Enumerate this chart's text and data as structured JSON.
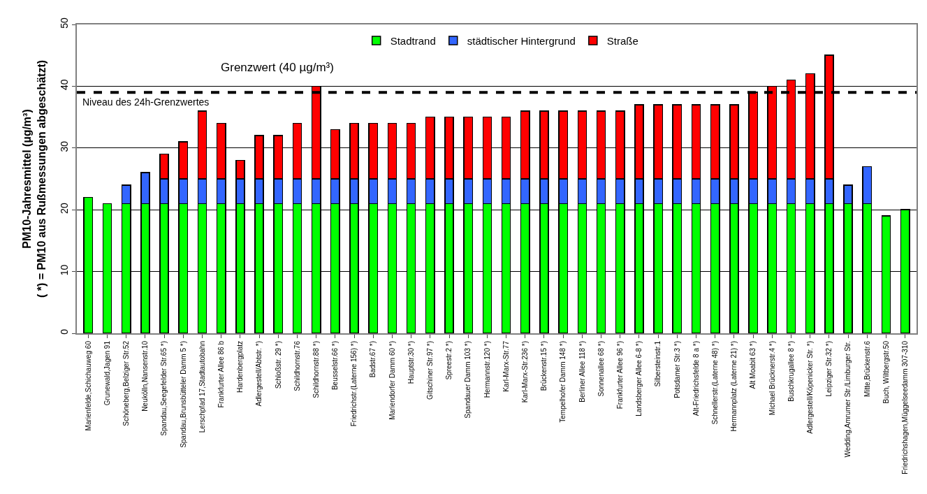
{
  "chart_data": {
    "type": "bar",
    "stacked": true,
    "ylabel": "PM10-Jahresmittel (µg/m³)\n( *) = PM10 aus Rußmessungen abgeschätzt)",
    "categories": [
      "Marienfelde,Schichauweg 60",
      "Grunewald,Jagen 91",
      "Schöneberg,Belziger Str.52",
      "Neukölln,Nansenstr.10",
      "Spandau,Seegefelder Str.65 *)",
      "Spandau,Brunsbütteler Damm 5 *)",
      "Lerschpfad 17,Stadtautobahn",
      "Frankfurter Allee 86 b",
      "Hardenbergplatz",
      "Adlergestell/Abtstr. *)",
      "Schloßstr. 29 *)",
      "Schildhornstr.76",
      "Schildhornstr.88 *)",
      "Beusselstr.66 *)",
      "Friedrichstr.(Laterne 156) *)",
      "Badstr.67 *)",
      "Mariendorfer Damm 60 *)",
      "Hauptstr.30 *)",
      "Gitschiner Str.97 *)",
      "Spreestr.2 *)",
      "Spandauer Damm 103 *)",
      "Hermannstr.120 *)",
      "Karl-Marx-Str.77",
      "Karl-Marx-Str.236 *)",
      "Brückenstr.15 *)",
      "Tempelhofer Damm 148 *)",
      "Berliner Allee 118 *)",
      "Sonnenallee 68 *)",
      "Frankfurter Allee 96 *)",
      "Landsberger Allee 6-8 *)",
      "Silbersteinstr.1",
      "Potsdamer Str.3 *)",
      "Alt-Friedrichsfelde 8 a *)",
      "Schnellerstr.(Laterne 48) *)",
      "Hermannplatz (Laterne 21) *)",
      "Alt Moabit 63 *)",
      "Michael Brücknerstr.4 *)",
      "Buschkrugallee 8 *)",
      "Adlergestell/Köpenicker Str. *)",
      "Leipziger Str.32 *)",
      "Wedding,Amrumer Str./Limburger Str.",
      "Mitte,Brückenstr.6",
      "Buch, Wiltbergstr.50",
      "Friedrichshagen,Müggelseedamm 307-310"
    ],
    "series": [
      {
        "name": "Stadtrand",
        "color": "#00ff00",
        "values": [
          22,
          21,
          21,
          21,
          21,
          21,
          21,
          21,
          21,
          21,
          21,
          21,
          21,
          21,
          21,
          21,
          21,
          21,
          21,
          21,
          21,
          21,
          21,
          21,
          21,
          21,
          21,
          21,
          21,
          21,
          21,
          21,
          21,
          21,
          21,
          21,
          21,
          21,
          21,
          21,
          21,
          21,
          19,
          20
        ]
      },
      {
        "name": "städtischer Hintergrund",
        "color": "#3366ff",
        "values": [
          null,
          null,
          3,
          5,
          4,
          4,
          4,
          4,
          4,
          4,
          4,
          4,
          4,
          4,
          4,
          4,
          4,
          4,
          4,
          4,
          4,
          4,
          4,
          4,
          4,
          4,
          4,
          4,
          4,
          4,
          4,
          4,
          4,
          4,
          4,
          4,
          4,
          4,
          4,
          4,
          3,
          6,
          null,
          null
        ]
      },
      {
        "name": "Straße",
        "color": "#ff0000",
        "values": [
          null,
          null,
          null,
          null,
          4,
          6,
          11,
          9,
          3,
          7,
          7,
          9,
          15,
          8,
          9,
          9,
          9,
          9,
          10,
          10,
          10,
          10,
          10,
          11,
          11,
          11,
          11,
          11,
          11,
          12,
          12,
          12,
          12,
          12,
          12,
          14,
          15,
          16,
          17,
          20,
          null,
          null,
          null,
          null
        ]
      }
    ],
    "ylim": [
      0,
      50
    ],
    "yticks": [
      0,
      10,
      20,
      30,
      40,
      50
    ],
    "grid": "y",
    "legend": "top",
    "ref_lines": [
      {
        "axis": "y",
        "value": 39,
        "label": "Grenzwert (40 µg/m³)",
        "color": "#000000",
        "line_style": "dashed"
      }
    ],
    "annotations": [
      "Niveau des 24h-Grenzwertes"
    ]
  }
}
